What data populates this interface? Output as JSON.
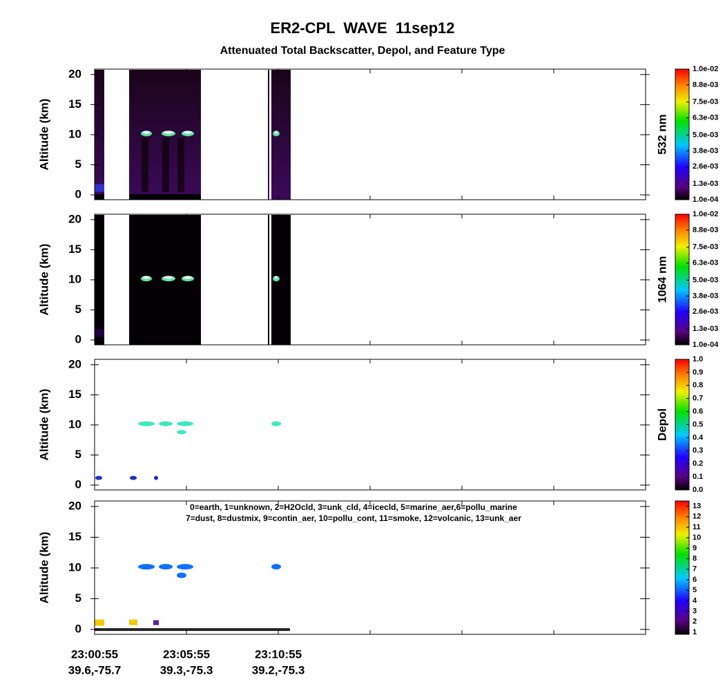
{
  "title": "ER2-CPL  WAVE  11sep12",
  "subtitle": "Attenuated Total Backscatter, Depol, and Feature Type",
  "x_labels": [
    "23:00:55",
    "23:05:55",
    "23:10:55"
  ],
  "x_sublabels": [
    "39.6,-75.7",
    "39.3,-75.3",
    "39.2,-75.3"
  ],
  "chart_data": [
    {
      "type": "curtain",
      "ylabel": "Altitude (km)",
      "ylim": [
        -0.8,
        20.9
      ],
      "yticks": [
        0,
        5,
        10,
        15,
        20
      ],
      "colorbar": {
        "label": "532 nm",
        "clim": [
          0.0001,
          0.01
        ],
        "ticks": [
          {
            "value": 0.0001,
            "label": "1.0e-04"
          },
          {
            "value": 0.0013,
            "label": "1.3e-03"
          },
          {
            "value": 0.0026,
            "label": "2.6e-03"
          },
          {
            "value": 0.0038,
            "label": "3.8e-03"
          },
          {
            "value": 0.005,
            "label": "5.0e-03"
          },
          {
            "value": 0.0063,
            "label": "6.3e-03"
          },
          {
            "value": 0.0075,
            "label": "7.5e-03"
          },
          {
            "value": 0.0088,
            "label": "8.8e-03"
          },
          {
            "value": 0.01,
            "label": "1.0e-02"
          }
        ]
      }
    },
    {
      "type": "curtain",
      "ylabel": "Altitude (km)",
      "ylim": [
        -0.8,
        20.9
      ],
      "yticks": [
        0,
        5,
        10,
        15,
        20
      ],
      "colorbar": {
        "label": "1064 nm",
        "clim": [
          0.0001,
          0.01
        ],
        "ticks": [
          {
            "value": 0.0001,
            "label": "1.0e-04"
          },
          {
            "value": 0.0013,
            "label": "1.3e-03"
          },
          {
            "value": 0.0026,
            "label": "2.6e-03"
          },
          {
            "value": 0.0038,
            "label": "3.8e-03"
          },
          {
            "value": 0.005,
            "label": "5.0e-03"
          },
          {
            "value": 0.0063,
            "label": "6.3e-03"
          },
          {
            "value": 0.0075,
            "label": "7.5e-03"
          },
          {
            "value": 0.0088,
            "label": "8.8e-03"
          },
          {
            "value": 0.01,
            "label": "1.0e-02"
          }
        ]
      }
    },
    {
      "type": "curtain",
      "ylabel": "Altitude (km)",
      "ylim": [
        -0.8,
        20.9
      ],
      "yticks": [
        0,
        5,
        10,
        15,
        20
      ],
      "colorbar": {
        "label": "Depol",
        "clim": [
          0,
          1
        ],
        "ticks": [
          {
            "value": 0,
            "label": "0.0"
          },
          0.1,
          0.2,
          0.3,
          0.4,
          0.5,
          0.6,
          0.7,
          0.8,
          0.9,
          {
            "value": 1,
            "label": "1.0"
          }
        ]
      }
    },
    {
      "type": "curtain",
      "ylabel": "Altitude (km)",
      "ylim": [
        -0.8,
        20.9
      ],
      "yticks": [
        0,
        5,
        10,
        15,
        20
      ],
      "legend": [
        "0=earth, 1=unknown, 2=H2Ocld, 3=unk_cld, 4=icecld, 5=marine_aer,6=pollu_marine",
        "7=dust, 8=dustmix, 9=contin_aer, 10=pollu_cont, 11=smoke, 12=volcanic, 13=unk_aer"
      ],
      "colorbar": {
        "clim": [
          0.8,
          13.5
        ],
        "ticks": [
          1,
          2,
          3,
          4,
          5,
          6,
          7,
          8,
          9,
          10,
          11,
          12,
          13
        ]
      }
    }
  ]
}
